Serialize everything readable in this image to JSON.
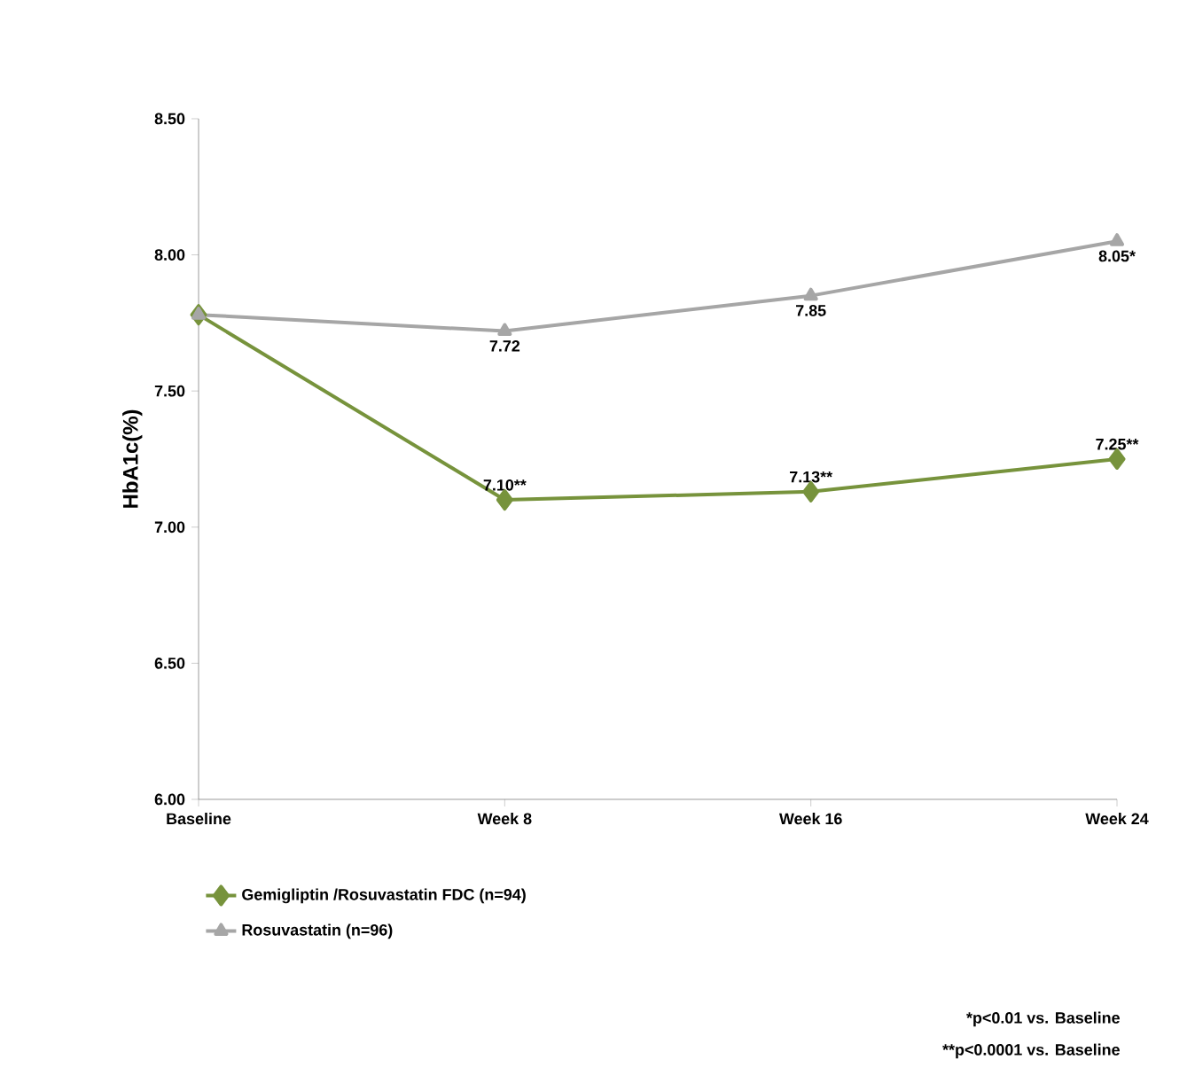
{
  "chart_data": {
    "type": "line",
    "ylabel": "HbA1c(%)",
    "categories": [
      "Baseline",
      "Week 8",
      "Week 16",
      "Week 24"
    ],
    "series": [
      {
        "name": "Gemigliptin /Rosuvastatin FDC (n=94)",
        "color": "#77933c",
        "marker": "diamond",
        "values": [
          7.78,
          7.1,
          7.13,
          7.25
        ],
        "value_labels": [
          null,
          "7.10**",
          "7.13**",
          "7.25**"
        ]
      },
      {
        "name": "Rosuvastatin (n=96)",
        "color": "#a6a6a6",
        "marker": "triangle",
        "values": [
          7.78,
          7.72,
          7.85,
          8.05
        ],
        "value_labels": [
          null,
          "7.72",
          "7.85",
          "8.05*"
        ]
      }
    ],
    "ylim": [
      6.0,
      8.5
    ],
    "yticks": [
      "6.00",
      "6.50",
      "7.00",
      "7.50",
      "8.00",
      "8.50"
    ],
    "grid": false,
    "legend": "bottom",
    "line_style": "solid",
    "annotations": [
      "*p<0.01 vs. Baseline",
      "**p<0.0001 vs. Baseline"
    ]
  }
}
